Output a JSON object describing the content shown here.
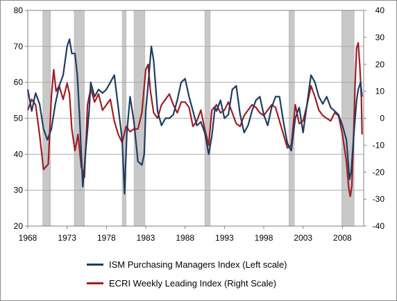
{
  "chart_data": {
    "type": "line",
    "grid": true,
    "legend_position": "bottom",
    "x_ticks": [
      "1968",
      "1973",
      "1978",
      "1983",
      "1988",
      "1993",
      "1998",
      "2003",
      "2008"
    ],
    "x_range": [
      1968,
      2010.7
    ],
    "y_left": {
      "range": [
        20,
        80
      ],
      "ticks": [
        20,
        30,
        40,
        50,
        60,
        70,
        80
      ]
    },
    "y_right": {
      "range": [
        -40,
        40
      ],
      "ticks": [
        -40,
        -30,
        -20,
        -10,
        0,
        10,
        20,
        30,
        40
      ]
    },
    "recessions": [
      [
        1969.9,
        1970.9
      ],
      [
        1973.9,
        1975.2
      ],
      [
        1980.0,
        1980.5
      ],
      [
        1981.5,
        1982.9
      ],
      [
        1990.5,
        1991.2
      ],
      [
        2001.2,
        2001.9
      ],
      [
        2007.9,
        2009.5
      ]
    ],
    "recession_color": "#c8c8c8",
    "series": [
      {
        "name": "ISM Purchasing Managers Index (Left scale)",
        "axis": "left",
        "color": "#1f3b63",
        "points": [
          [
            1968,
            58
          ],
          [
            1968.5,
            52
          ],
          [
            1969,
            57
          ],
          [
            1969.5,
            54
          ],
          [
            1970,
            47
          ],
          [
            1970.5,
            44
          ],
          [
            1971,
            47
          ],
          [
            1971.5,
            54
          ],
          [
            1972,
            59
          ],
          [
            1972.5,
            62
          ],
          [
            1973,
            70
          ],
          [
            1973.3,
            72
          ],
          [
            1973.6,
            68
          ],
          [
            1974,
            68
          ],
          [
            1974.3,
            62
          ],
          [
            1974.6,
            50
          ],
          [
            1975,
            31
          ],
          [
            1975.4,
            42
          ],
          [
            1975.8,
            52
          ],
          [
            1976,
            60
          ],
          [
            1976.5,
            56
          ],
          [
            1977,
            58
          ],
          [
            1977.5,
            57
          ],
          [
            1978,
            58
          ],
          [
            1978.5,
            60
          ],
          [
            1979,
            62
          ],
          [
            1979.5,
            53
          ],
          [
            1980,
            44
          ],
          [
            1980.3,
            29
          ],
          [
            1980.6,
            46
          ],
          [
            1981,
            56
          ],
          [
            1981.5,
            49
          ],
          [
            1982,
            38
          ],
          [
            1982.5,
            37
          ],
          [
            1982.8,
            40
          ],
          [
            1983,
            52
          ],
          [
            1983.4,
            62
          ],
          [
            1983.7,
            70
          ],
          [
            1984,
            66
          ],
          [
            1984.5,
            52
          ],
          [
            1985,
            48
          ],
          [
            1985.5,
            50
          ],
          [
            1986,
            50
          ],
          [
            1986.5,
            51
          ],
          [
            1987,
            55
          ],
          [
            1987.5,
            60
          ],
          [
            1988,
            61
          ],
          [
            1988.5,
            56
          ],
          [
            1989,
            52
          ],
          [
            1989.5,
            48
          ],
          [
            1990,
            49
          ],
          [
            1990.5,
            46
          ],
          [
            1991,
            40
          ],
          [
            1991.4,
            45
          ],
          [
            1991.8,
            53
          ],
          [
            1992,
            52
          ],
          [
            1992.5,
            55
          ],
          [
            1993,
            50
          ],
          [
            1993.5,
            51
          ],
          [
            1994,
            58
          ],
          [
            1994.5,
            59
          ],
          [
            1995,
            51
          ],
          [
            1995.5,
            46
          ],
          [
            1996,
            48
          ],
          [
            1996.5,
            52
          ],
          [
            1997,
            55
          ],
          [
            1997.5,
            56
          ],
          [
            1998,
            51
          ],
          [
            1998.5,
            48
          ],
          [
            1999,
            53
          ],
          [
            1999.5,
            56
          ],
          [
            2000,
            56
          ],
          [
            2000.5,
            49
          ],
          [
            2001,
            43
          ],
          [
            2001.5,
            41
          ],
          [
            2002,
            50
          ],
          [
            2002.5,
            53
          ],
          [
            2003,
            46
          ],
          [
            2003.5,
            54
          ],
          [
            2004,
            62
          ],
          [
            2004.5,
            60
          ],
          [
            2005,
            56
          ],
          [
            2005.5,
            54
          ],
          [
            2006,
            56
          ],
          [
            2006.5,
            53
          ],
          [
            2007,
            52
          ],
          [
            2007.5,
            51
          ],
          [
            2008,
            48
          ],
          [
            2008.5,
            44
          ],
          [
            2008.9,
            33
          ],
          [
            2009.1,
            35
          ],
          [
            2009.5,
            47
          ],
          [
            2009.8,
            55
          ],
          [
            2010,
            58
          ],
          [
            2010.3,
            60
          ],
          [
            2010.5,
            56
          ]
        ]
      },
      {
        "name": "ECRI Weekly Leading Index (Right Scale)",
        "axis": "right",
        "color": "#a01d22",
        "points": [
          [
            1968,
            3
          ],
          [
            1968.5,
            7
          ],
          [
            1969,
            5
          ],
          [
            1969.5,
            -6
          ],
          [
            1970,
            -19
          ],
          [
            1970.3,
            -18
          ],
          [
            1970.6,
            -17
          ],
          [
            1971,
            8
          ],
          [
            1971.3,
            18
          ],
          [
            1971.6,
            10
          ],
          [
            1972,
            12
          ],
          [
            1972.5,
            7
          ],
          [
            1973,
            13
          ],
          [
            1973.3,
            9
          ],
          [
            1973.6,
            -4
          ],
          [
            1974,
            -12
          ],
          [
            1974.4,
            -6
          ],
          [
            1974.8,
            -18
          ],
          [
            1975.2,
            -22
          ],
          [
            1975.6,
            5
          ],
          [
            1976,
            11
          ],
          [
            1976.5,
            6
          ],
          [
            1977,
            9
          ],
          [
            1977.5,
            3
          ],
          [
            1978,
            5
          ],
          [
            1978.5,
            7
          ],
          [
            1979,
            -1
          ],
          [
            1979.5,
            -6
          ],
          [
            1980,
            -9
          ],
          [
            1980.5,
            -3
          ],
          [
            1981,
            -5
          ],
          [
            1981.5,
            -4
          ],
          [
            1982,
            -4
          ],
          [
            1982.5,
            2
          ],
          [
            1983,
            18
          ],
          [
            1983.3,
            20
          ],
          [
            1983.6,
            10
          ],
          [
            1984,
            2
          ],
          [
            1984.5,
            0
          ],
          [
            1985,
            5
          ],
          [
            1985.5,
            7
          ],
          [
            1986,
            9
          ],
          [
            1986.5,
            5
          ],
          [
            1987,
            2
          ],
          [
            1987.5,
            6
          ],
          [
            1988,
            6
          ],
          [
            1988.5,
            4
          ],
          [
            1989,
            -3
          ],
          [
            1989.5,
            -1
          ],
          [
            1990,
            3
          ],
          [
            1990.5,
            -4
          ],
          [
            1991,
            -10
          ],
          [
            1991.4,
            3
          ],
          [
            1992,
            5
          ],
          [
            1992.5,
            2
          ],
          [
            1993,
            3
          ],
          [
            1993.5,
            6
          ],
          [
            1994,
            2
          ],
          [
            1994.5,
            -2
          ],
          [
            1995,
            -3
          ],
          [
            1995.5,
            1
          ],
          [
            1996,
            3
          ],
          [
            1996.5,
            5
          ],
          [
            1997,
            4
          ],
          [
            1997.5,
            2
          ],
          [
            1998,
            1
          ],
          [
            1998.5,
            3
          ],
          [
            1999,
            5
          ],
          [
            1999.5,
            4
          ],
          [
            2000,
            -1
          ],
          [
            2000.5,
            -6
          ],
          [
            2001,
            -11
          ],
          [
            2001.5,
            -10
          ],
          [
            2002,
            5
          ],
          [
            2002.5,
            -2
          ],
          [
            2003,
            -1
          ],
          [
            2003.5,
            5
          ],
          [
            2004,
            12
          ],
          [
            2004.5,
            8
          ],
          [
            2005,
            3
          ],
          [
            2005.5,
            1
          ],
          [
            2006,
            0
          ],
          [
            2006.5,
            -1
          ],
          [
            2007,
            2
          ],
          [
            2007.5,
            1
          ],
          [
            2008,
            -6
          ],
          [
            2008.5,
            -16
          ],
          [
            2008.8,
            -26
          ],
          [
            2009,
            -29
          ],
          [
            2009.2,
            -25
          ],
          [
            2009.4,
            -8
          ],
          [
            2009.6,
            12
          ],
          [
            2009.8,
            26
          ],
          [
            2010,
            28
          ],
          [
            2010.2,
            20
          ],
          [
            2010.4,
            8
          ],
          [
            2010.5,
            -6
          ]
        ]
      }
    ]
  }
}
